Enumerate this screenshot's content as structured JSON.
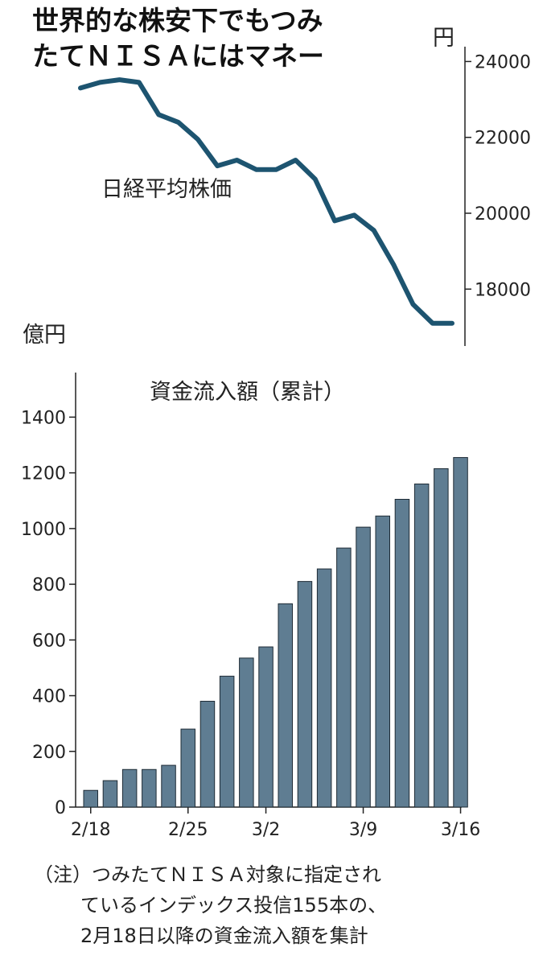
{
  "title": "世界的な株安下でもつみ\nたてＮＩＳＡにはマネー",
  "chart_data": [
    {
      "type": "line",
      "series": [
        {
          "name": "日経平均株価",
          "color": "#1d5470",
          "values": [
            23300,
            23450,
            23520,
            23450,
            22600,
            22400,
            21950,
            21250,
            21400,
            21150,
            21150,
            21400,
            20900,
            19800,
            19950,
            19550,
            18650,
            17600,
            17100,
            17100
          ]
        }
      ],
      "unit": "円",
      "ylim": [
        16500,
        24200
      ],
      "yticks": [
        24000,
        22000,
        20000,
        18000
      ],
      "ytick_labels": [
        "24000",
        "22000",
        "20000",
        "18000"
      ],
      "y_axis_side": "right"
    },
    {
      "type": "bar",
      "title": "資金流入額（累計）",
      "unit": "億円",
      "bar_color": "#5f7d92",
      "values": [
        60,
        95,
        135,
        135,
        150,
        280,
        380,
        470,
        535,
        575,
        730,
        810,
        855,
        930,
        1005,
        1045,
        1105,
        1160,
        1215,
        1255
      ],
      "ylim": [
        0,
        1560
      ],
      "yticks": [
        0,
        200,
        400,
        600,
        800,
        1000,
        1200,
        1400
      ],
      "ytick_labels": [
        "0",
        "200",
        "400",
        "600",
        "800",
        "1000",
        "1200",
        "1400"
      ],
      "xtick_labels": [
        {
          "index": 0,
          "label": "2/18"
        },
        {
          "index": 5,
          "label": "2/25"
        },
        {
          "index": 9,
          "label": "3/2"
        },
        {
          "index": 14,
          "label": "3/9"
        },
        {
          "index": 19,
          "label": "3/16"
        }
      ]
    }
  ],
  "note": {
    "line1": "（注）つみたてＮＩＳＡ対象に指定され",
    "line2": "ているインデックス投信155本の、",
    "line3": "2月18日以降の資金流入額を集計"
  }
}
